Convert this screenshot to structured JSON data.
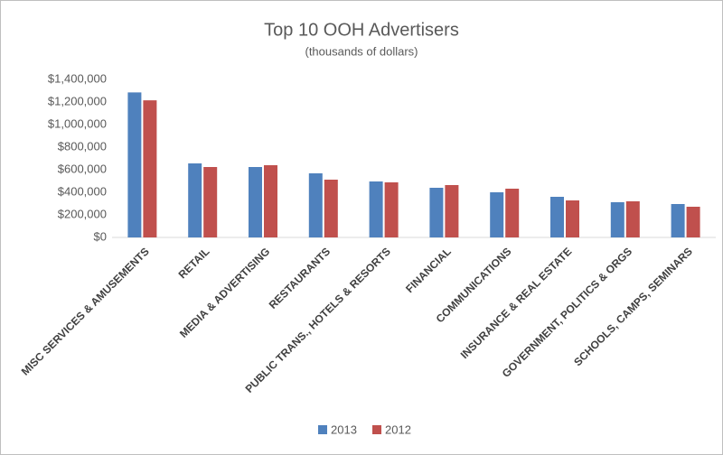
{
  "chart_data": {
    "type": "bar",
    "title": "Top 10 OOH Advertisers",
    "subtitle": "(thousands of dollars)",
    "categories": [
      "MISC SERVICES & AMUSEMENTS",
      "RETAIL",
      "MEDIA & ADVERTISING",
      "RESTAURANTS",
      "PUBLIC TRANS., HOTELS & RESORTS",
      "FINANCIAL",
      "COMMUNICATIONS",
      "INSURANCE & REAL ESTATE",
      "GOVERNMENT, POLITICS & ORGS",
      "SCHOOLS, CAMPS, SEMINARS"
    ],
    "series": [
      {
        "name": "2013",
        "color": "#4f81bd",
        "values": [
          1285000,
          656000,
          624000,
          568000,
          496000,
          440000,
          400000,
          360000,
          312000,
          296000
        ]
      },
      {
        "name": "2012",
        "color": "#c0504d",
        "values": [
          1215000,
          624000,
          640000,
          512000,
          488000,
          464000,
          432000,
          328000,
          320000,
          272000
        ]
      }
    ],
    "ylim": [
      0,
      1400000
    ],
    "yticks": [
      {
        "value": 0,
        "label": "$0"
      },
      {
        "value": 200000,
        "label": "$200,000"
      },
      {
        "value": 400000,
        "label": "$400,000"
      },
      {
        "value": 600000,
        "label": "$600,000"
      },
      {
        "value": 800000,
        "label": "$800,000"
      },
      {
        "value": 1000000,
        "label": "$1,000,000"
      },
      {
        "value": 1200000,
        "label": "$1,200,000"
      },
      {
        "value": 1400000,
        "label": "$1,400,000"
      }
    ],
    "grid": false,
    "legend": "bottom"
  }
}
